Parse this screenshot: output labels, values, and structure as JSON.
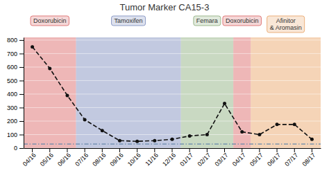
{
  "chart_data": {
    "type": "line",
    "title": "Tumor Marker CA15-3",
    "categories": [
      "04/16",
      "05/16",
      "06/16",
      "07/16",
      "08/16",
      "09/16",
      "10/16",
      "11/16",
      "12/16",
      "01/17",
      "02/17",
      "03/17",
      "04/17",
      "05/17",
      "06/17",
      "07/17",
      "08/17"
    ],
    "values": [
      750,
      590,
      390,
      210,
      130,
      55,
      50,
      55,
      65,
      90,
      100,
      330,
      120,
      100,
      175,
      175,
      65
    ],
    "color": "#111111",
    "line_style": "dashed",
    "marker": "circle",
    "ylim": [
      0,
      820
    ],
    "yticks": [
      0,
      100,
      200,
      300,
      400,
      500,
      600,
      700,
      800
    ],
    "grid": true,
    "reference_lines": [
      {
        "value": 30,
        "color": "#6688AA",
        "line_style": "dashdot"
      }
    ],
    "regions": [
      {
        "from": "04/16",
        "to": "06/16",
        "color": "#D96060",
        "label": "Doxorubicin"
      },
      {
        "from": "07/16",
        "to": "12/16",
        "color": "#7788BB",
        "label": "Tamoxifen"
      },
      {
        "from": "01/17",
        "to": "03/17",
        "color": "#88AA77",
        "label": "Femara"
      },
      {
        "from": "04/17",
        "to": "04/17",
        "color": "#D96060",
        "label": "Doxorubicin"
      },
      {
        "from": "05/17",
        "to": "08/17",
        "color": "#E8A060",
        "label": "Afinitor\n& Aromasin"
      }
    ]
  }
}
